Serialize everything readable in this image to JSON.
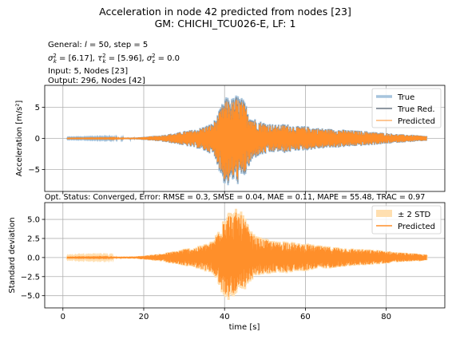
{
  "figure": {
    "title_line1": "Acceleration in node 42 predicted from nodes [23]",
    "title_line2": "GM: CHICHI_TCU026-E, LF: 1",
    "info": {
      "general_prefix": "General: ",
      "general_l": "l",
      "general_rest": " = 50, step = 5",
      "sigma_k_value": " = [6.17], ",
      "tau_k_value": " = [5.96], ",
      "sigma_e_value": " = 0.0",
      "input": "Input: 5, Nodes [23]",
      "output": "Output: 296, Nodes [42]"
    },
    "status": "Opt. Status: Converged, Error: RMSE = 0.3, SMSE = 0.04, MAE = 0.11, MAPE = 55.48, TRAC = 0.97"
  },
  "colors": {
    "true": "#a6c4dd",
    "true_red": "#7f8a94",
    "predicted": "#ff8f2a",
    "std_band": "#ffdfb0",
    "grid": "#b0b0b0"
  },
  "chart_data": [
    {
      "type": "line",
      "xlim": [
        -4.5,
        94.5
      ],
      "ylim": [
        -8.5,
        8.5
      ],
      "yticks": [
        -5,
        0,
        5
      ],
      "ytick_labels": [
        "−5",
        "0",
        "5"
      ],
      "xticks": [
        0,
        20,
        40,
        60,
        80
      ],
      "grid": true,
      "xlabel": "",
      "ylabel": "Acceleration [m/s²]",
      "legend_placement": "upper-right",
      "x_range": [
        1,
        90
      ],
      "series": [
        {
          "name": "True",
          "style": "line-wide"
        },
        {
          "name": "True Red.",
          "style": "line"
        },
        {
          "name": "Predicted",
          "style": "line-thin"
        }
      ],
      "envelope": {
        "x": [
          1,
          10,
          18,
          20,
          24,
          28,
          30,
          33,
          35,
          37,
          38,
          39,
          40,
          41,
          42,
          43,
          44,
          45,
          46,
          47,
          48,
          50,
          53,
          55,
          58,
          60,
          62,
          65,
          68,
          70,
          72,
          75,
          78,
          80,
          83,
          86,
          88,
          90
        ],
        "upper": [
          0.05,
          0.08,
          0.15,
          0.25,
          0.5,
          0.9,
          1.2,
          1.5,
          2.0,
          2.5,
          3.5,
          5.0,
          6.5,
          6.8,
          6.5,
          7.2,
          6.8,
          6.0,
          4.5,
          3.5,
          3.0,
          2.6,
          2.2,
          2.4,
          2.0,
          2.0,
          1.8,
          1.6,
          1.5,
          1.4,
          1.3,
          1.2,
          1.0,
          0.9,
          0.7,
          0.6,
          0.5,
          0.4
        ],
        "lower": [
          -0.05,
          -0.08,
          -0.15,
          -0.25,
          -0.5,
          -0.9,
          -1.2,
          -1.6,
          -2.1,
          -2.6,
          -3.8,
          -6.0,
          -7.5,
          -7.8,
          -7.0,
          -7.6,
          -7.0,
          -6.2,
          -4.8,
          -3.6,
          -3.0,
          -2.6,
          -2.2,
          -2.4,
          -2.0,
          -2.0,
          -1.8,
          -1.6,
          -1.5,
          -1.4,
          -1.3,
          -1.2,
          -1.0,
          -0.9,
          -0.7,
          -0.6,
          -0.5,
          -0.4
        ]
      }
    },
    {
      "type": "area",
      "xlim": [
        -4.5,
        94.5
      ],
      "ylim": [
        -6.6,
        7.2
      ],
      "yticks": [
        -5.0,
        -2.5,
        0.0,
        2.5,
        5.0
      ],
      "ytick_labels": [
        "−5.0",
        "−2.5",
        "0.0",
        "2.5",
        "5.0"
      ],
      "xticks": [
        0,
        20,
        40,
        60,
        80
      ],
      "xtick_labels": [
        "0",
        "20",
        "40",
        "60",
        "80"
      ],
      "grid": true,
      "xlabel": "time [s]",
      "ylabel": "Standard deviation",
      "legend_placement": "upper-right",
      "x_range": [
        1,
        90
      ],
      "series": [
        {
          "name": "± 2 STD",
          "style": "band"
        },
        {
          "name": "Predicted",
          "style": "line"
        }
      ],
      "envelope": {
        "x": [
          1,
          10,
          18,
          20,
          24,
          28,
          30,
          33,
          35,
          37,
          38,
          39,
          40,
          41,
          42,
          43,
          44,
          45,
          46,
          47,
          48,
          50,
          53,
          55,
          58,
          60,
          62,
          65,
          68,
          70,
          72,
          75,
          78,
          80,
          83,
          86,
          88,
          90
        ],
        "upper": [
          0.05,
          0.08,
          0.15,
          0.25,
          0.5,
          0.9,
          1.2,
          1.4,
          1.8,
          2.2,
          3.2,
          4.8,
          6.2,
          6.3,
          6.0,
          6.5,
          6.1,
          5.4,
          4.0,
          3.2,
          2.8,
          2.5,
          2.1,
          2.3,
          1.9,
          1.9,
          1.7,
          1.5,
          1.4,
          1.3,
          1.2,
          1.1,
          1.0,
          0.9,
          0.7,
          0.6,
          0.5,
          0.4
        ],
        "lower": [
          -0.05,
          -0.08,
          -0.15,
          -0.25,
          -0.5,
          -0.9,
          -1.1,
          -1.4,
          -1.8,
          -2.1,
          -3.0,
          -4.4,
          -5.4,
          -5.6,
          -5.0,
          -5.5,
          -5.1,
          -4.6,
          -3.4,
          -2.8,
          -2.5,
          -2.3,
          -2.0,
          -2.1,
          -1.8,
          -1.8,
          -1.6,
          -1.5,
          -1.3,
          -1.2,
          -1.1,
          -1.0,
          -0.9,
          -0.8,
          -0.6,
          -0.5,
          -0.5,
          -0.4
        ]
      }
    }
  ]
}
